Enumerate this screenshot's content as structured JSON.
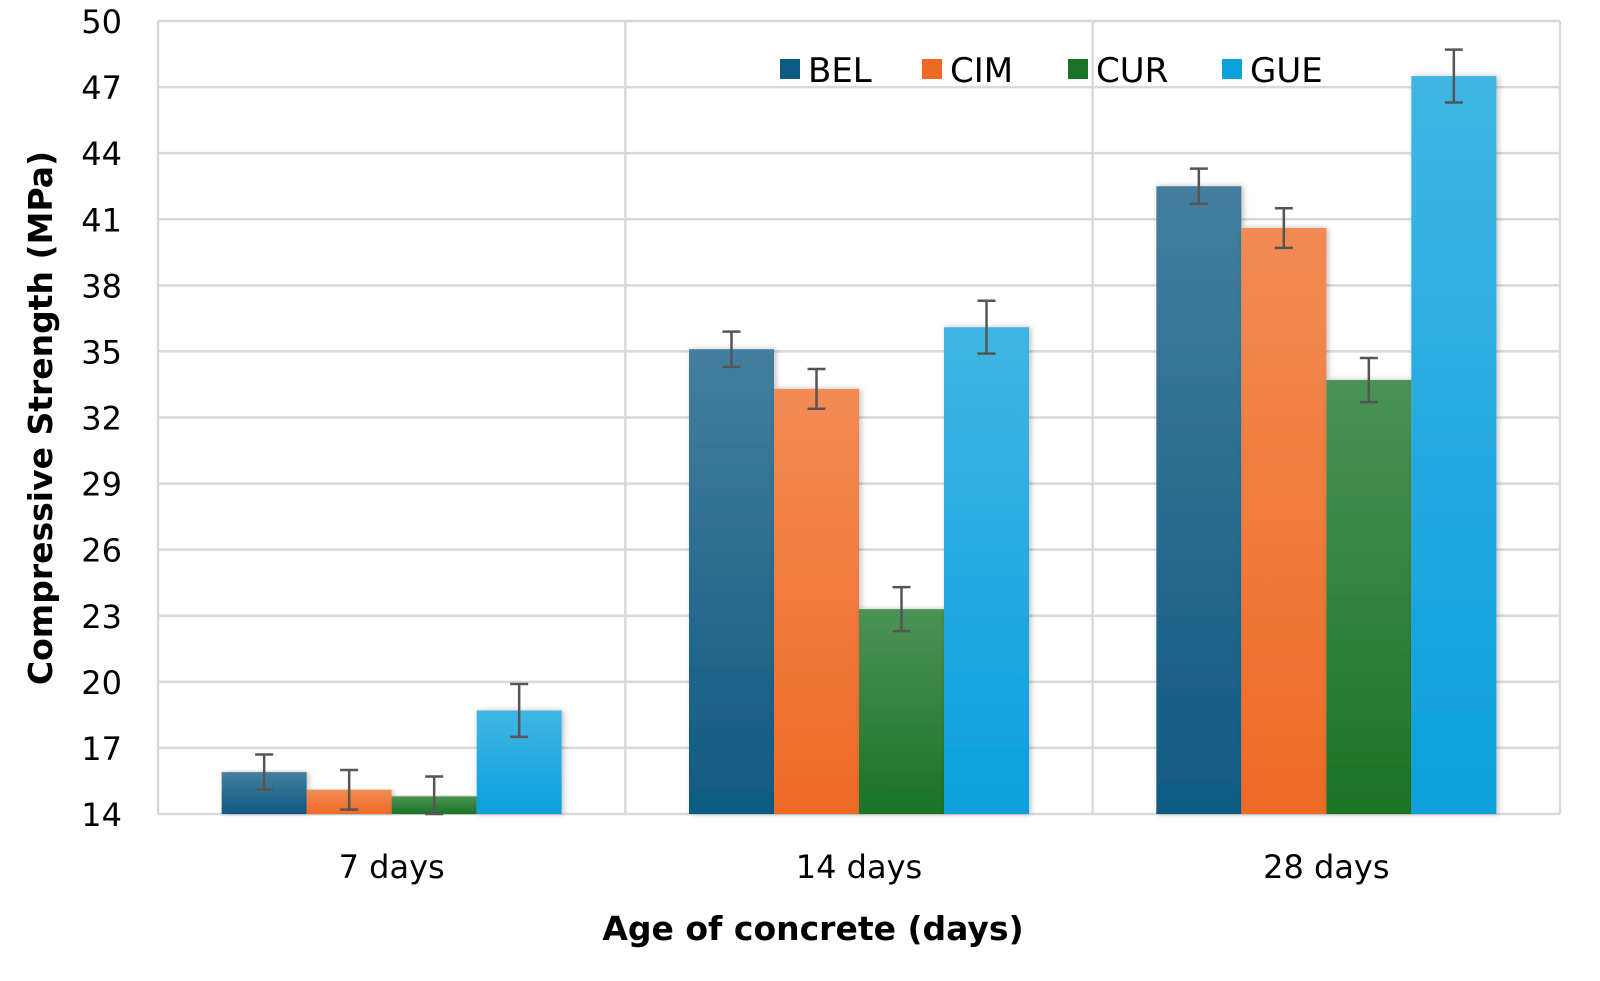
{
  "chart_data": {
    "type": "bar",
    "title": "",
    "xlabel": "Age of concrete (days)",
    "ylabel": "Compressive Strength (MPa)",
    "ylim": [
      14,
      50
    ],
    "yticks": [
      14,
      17,
      20,
      23,
      26,
      29,
      32,
      35,
      38,
      41,
      44,
      47,
      50
    ],
    "ytick_labels": [
      "14",
      "17",
      "20",
      "23",
      "26",
      "29",
      "32",
      "35",
      "38",
      "41",
      "44",
      "47",
      "50"
    ],
    "grid": true,
    "legend_position": "top-right",
    "categories": [
      "7 days",
      "14 days",
      "28 days"
    ],
    "series": [
      {
        "name": "BEL",
        "color": "#0F5A82",
        "values": [
          15.9,
          35.1,
          42.5
        ],
        "errors": [
          0.8,
          0.8,
          0.8
        ]
      },
      {
        "name": "CIM",
        "color": "#EE6A24",
        "values": [
          15.1,
          33.3,
          40.6
        ],
        "errors": [
          0.9,
          0.9,
          0.9
        ]
      },
      {
        "name": "CUR",
        "color": "#1A7326",
        "values": [
          14.8,
          23.3,
          33.7
        ],
        "errors": [
          0.9,
          1.0,
          1.0
        ]
      },
      {
        "name": "GUE",
        "color": "#0AA0DC",
        "values": [
          18.7,
          36.1,
          47.5
        ],
        "errors": [
          1.2,
          1.2,
          1.2
        ]
      }
    ],
    "error_bar_color": "#555555"
  }
}
